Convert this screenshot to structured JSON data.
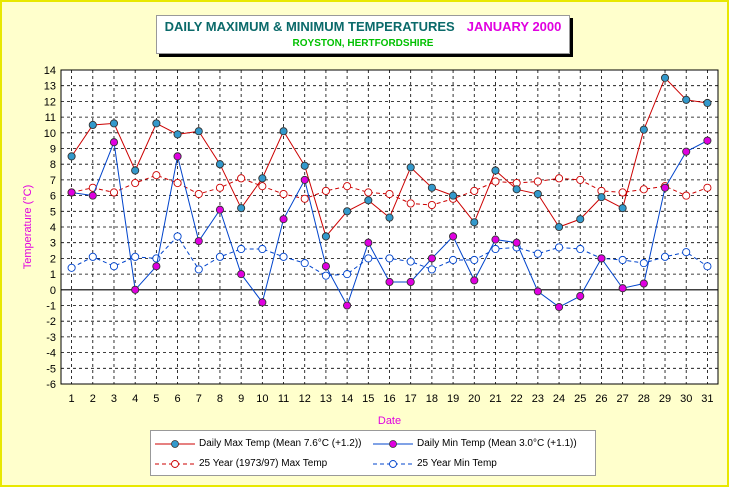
{
  "chart_data": {
    "type": "line",
    "title": "DAILY MAXIMUM &  MINIMUM  TEMPERATURES",
    "title_month": "JANUARY 2000",
    "subtitle": "ROYSTON, HERTFORDSHIRE",
    "xlabel": "Date",
    "ylabel": "Temperature (°C)",
    "ylim": [
      -6,
      14
    ],
    "grid": true,
    "legend_placement": "bottom",
    "categories": [
      1,
      2,
      3,
      4,
      5,
      6,
      7,
      8,
      9,
      10,
      11,
      12,
      13,
      14,
      15,
      16,
      17,
      18,
      19,
      20,
      21,
      22,
      23,
      24,
      25,
      26,
      27,
      28,
      29,
      30,
      31
    ],
    "series": [
      {
        "name": "Daily Max Temp (Mean 7.6°C (+1.2))",
        "color": "#cc0000",
        "marker_fill": "#3399cc",
        "style": "solid",
        "values": [
          8.5,
          10.5,
          10.6,
          7.6,
          10.6,
          9.9,
          10.1,
          8.0,
          5.2,
          7.1,
          10.1,
          7.9,
          3.4,
          5.0,
          5.7,
          4.6,
          7.8,
          6.5,
          6.0,
          4.3,
          7.6,
          6.4,
          6.1,
          4.0,
          4.5,
          5.9,
          5.2,
          10.2,
          13.5,
          12.1,
          11.9
        ]
      },
      {
        "name": "Daily Min Temp (Mean 3.0°C (+1.1))",
        "color": "#0044cc",
        "marker_fill": "#e000e0",
        "style": "solid",
        "values": [
          6.2,
          6.0,
          9.4,
          0.0,
          1.5,
          8.5,
          3.1,
          5.1,
          1.0,
          -0.8,
          4.5,
          7.0,
          1.5,
          -1.0,
          3.0,
          0.5,
          0.5,
          2.0,
          3.4,
          0.6,
          3.2,
          3.0,
          -0.1,
          -1.1,
          -0.4,
          2.0,
          0.1,
          0.4,
          6.5,
          8.8,
          9.5
        ]
      },
      {
        "name": "25 Year (1973/97)  Max Temp",
        "color": "#cc0000",
        "marker_fill": "#ffffff",
        "style": "dashed",
        "values": [
          6.2,
          6.5,
          6.2,
          6.8,
          7.3,
          6.8,
          6.1,
          6.5,
          7.1,
          6.6,
          6.1,
          5.8,
          6.3,
          6.6,
          6.2,
          6.1,
          5.5,
          5.4,
          5.8,
          6.3,
          6.9,
          6.8,
          6.9,
          7.1,
          7.0,
          6.3,
          6.2,
          6.4,
          6.6,
          6.0,
          6.5
        ]
      },
      {
        "name": "25 Year Min Temp",
        "color": "#0044cc",
        "marker_fill": "#ffffff",
        "style": "dashed",
        "values": [
          1.4,
          2.1,
          1.5,
          2.1,
          2.0,
          3.4,
          1.3,
          2.1,
          2.6,
          2.6,
          2.1,
          1.7,
          0.9,
          1.0,
          2.0,
          2.0,
          1.8,
          1.3,
          1.9,
          1.9,
          2.6,
          2.7,
          2.3,
          2.7,
          2.6,
          2.0,
          1.9,
          1.7,
          2.1,
          2.4,
          1.5
        ]
      }
    ]
  }
}
